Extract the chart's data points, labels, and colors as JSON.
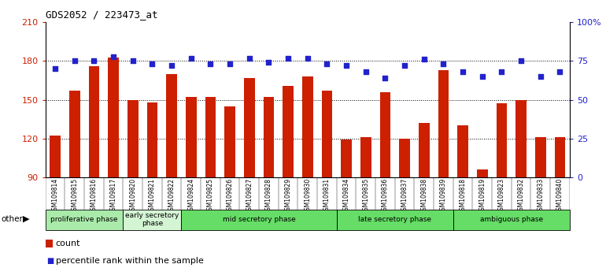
{
  "title": "GDS2052 / 223473_at",
  "samples": [
    "GSM109814",
    "GSM109815",
    "GSM109816",
    "GSM109817",
    "GSM109820",
    "GSM109821",
    "GSM109822",
    "GSM109824",
    "GSM109825",
    "GSM109826",
    "GSM109827",
    "GSM109828",
    "GSM109829",
    "GSM109830",
    "GSM109831",
    "GSM109834",
    "GSM109835",
    "GSM109836",
    "GSM109837",
    "GSM109838",
    "GSM109839",
    "GSM109818",
    "GSM109819",
    "GSM109823",
    "GSM109832",
    "GSM109833",
    "GSM109840"
  ],
  "counts": [
    122,
    157,
    176,
    183,
    150,
    148,
    170,
    152,
    152,
    145,
    167,
    152,
    161,
    168,
    157,
    119,
    121,
    156,
    120,
    132,
    173,
    130,
    96,
    147,
    150,
    121,
    121
  ],
  "percentiles": [
    70,
    75,
    75,
    78,
    75,
    73,
    72,
    77,
    73,
    73,
    77,
    74,
    77,
    77,
    73,
    72,
    68,
    64,
    72,
    76,
    73,
    68,
    65,
    68,
    75,
    65,
    68
  ],
  "phases": [
    {
      "label": "proliferative phase",
      "start": 0,
      "end": 4,
      "color": "#aaeaaa"
    },
    {
      "label": "early secretory\nphase",
      "start": 4,
      "end": 7,
      "color": "#d4f5d4"
    },
    {
      "label": "mid secretory phase",
      "start": 7,
      "end": 15,
      "color": "#66dd66"
    },
    {
      "label": "late secretory phase",
      "start": 15,
      "end": 21,
      "color": "#66dd66"
    },
    {
      "label": "ambiguous phase",
      "start": 21,
      "end": 27,
      "color": "#66dd66"
    }
  ],
  "bar_color": "#CC2000",
  "dot_color": "#2222CC",
  "left_ylim": [
    90,
    210
  ],
  "right_ylim": [
    0,
    100
  ],
  "left_yticks": [
    90,
    120,
    150,
    180,
    210
  ],
  "right_yticks": [
    0,
    25,
    50,
    75,
    100
  ],
  "right_yticklabels": [
    "0",
    "25",
    "50",
    "75",
    "100%"
  ],
  "bg_color": "#e8e8e8"
}
